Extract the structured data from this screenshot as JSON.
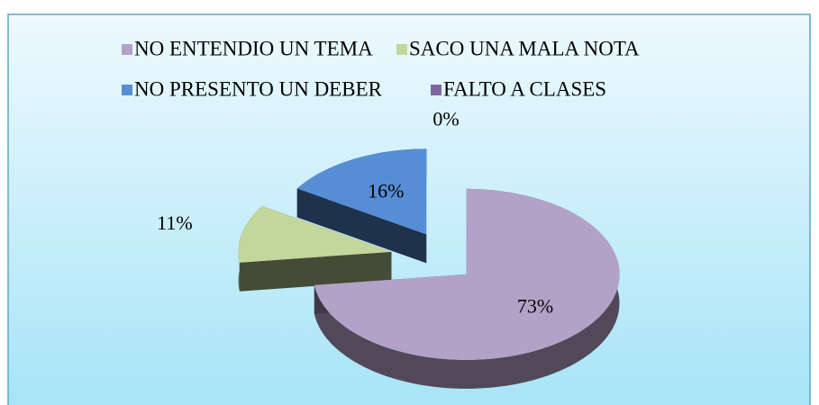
{
  "chart_data": {
    "type": "pie",
    "categories": [
      "NO ENTENDIO UN TEMA",
      "SACO UNA MALA NOTA",
      "NO PRESENTO UN DEBER",
      "FALTO A CLASES"
    ],
    "values": [
      73,
      11,
      16,
      0
    ],
    "value_labels": [
      "73%",
      "11%",
      "16%",
      "0%"
    ],
    "colors": [
      "#b3a2c7",
      "#c3d69b",
      "#558ed5",
      "#8064a2"
    ],
    "legend": "top"
  }
}
